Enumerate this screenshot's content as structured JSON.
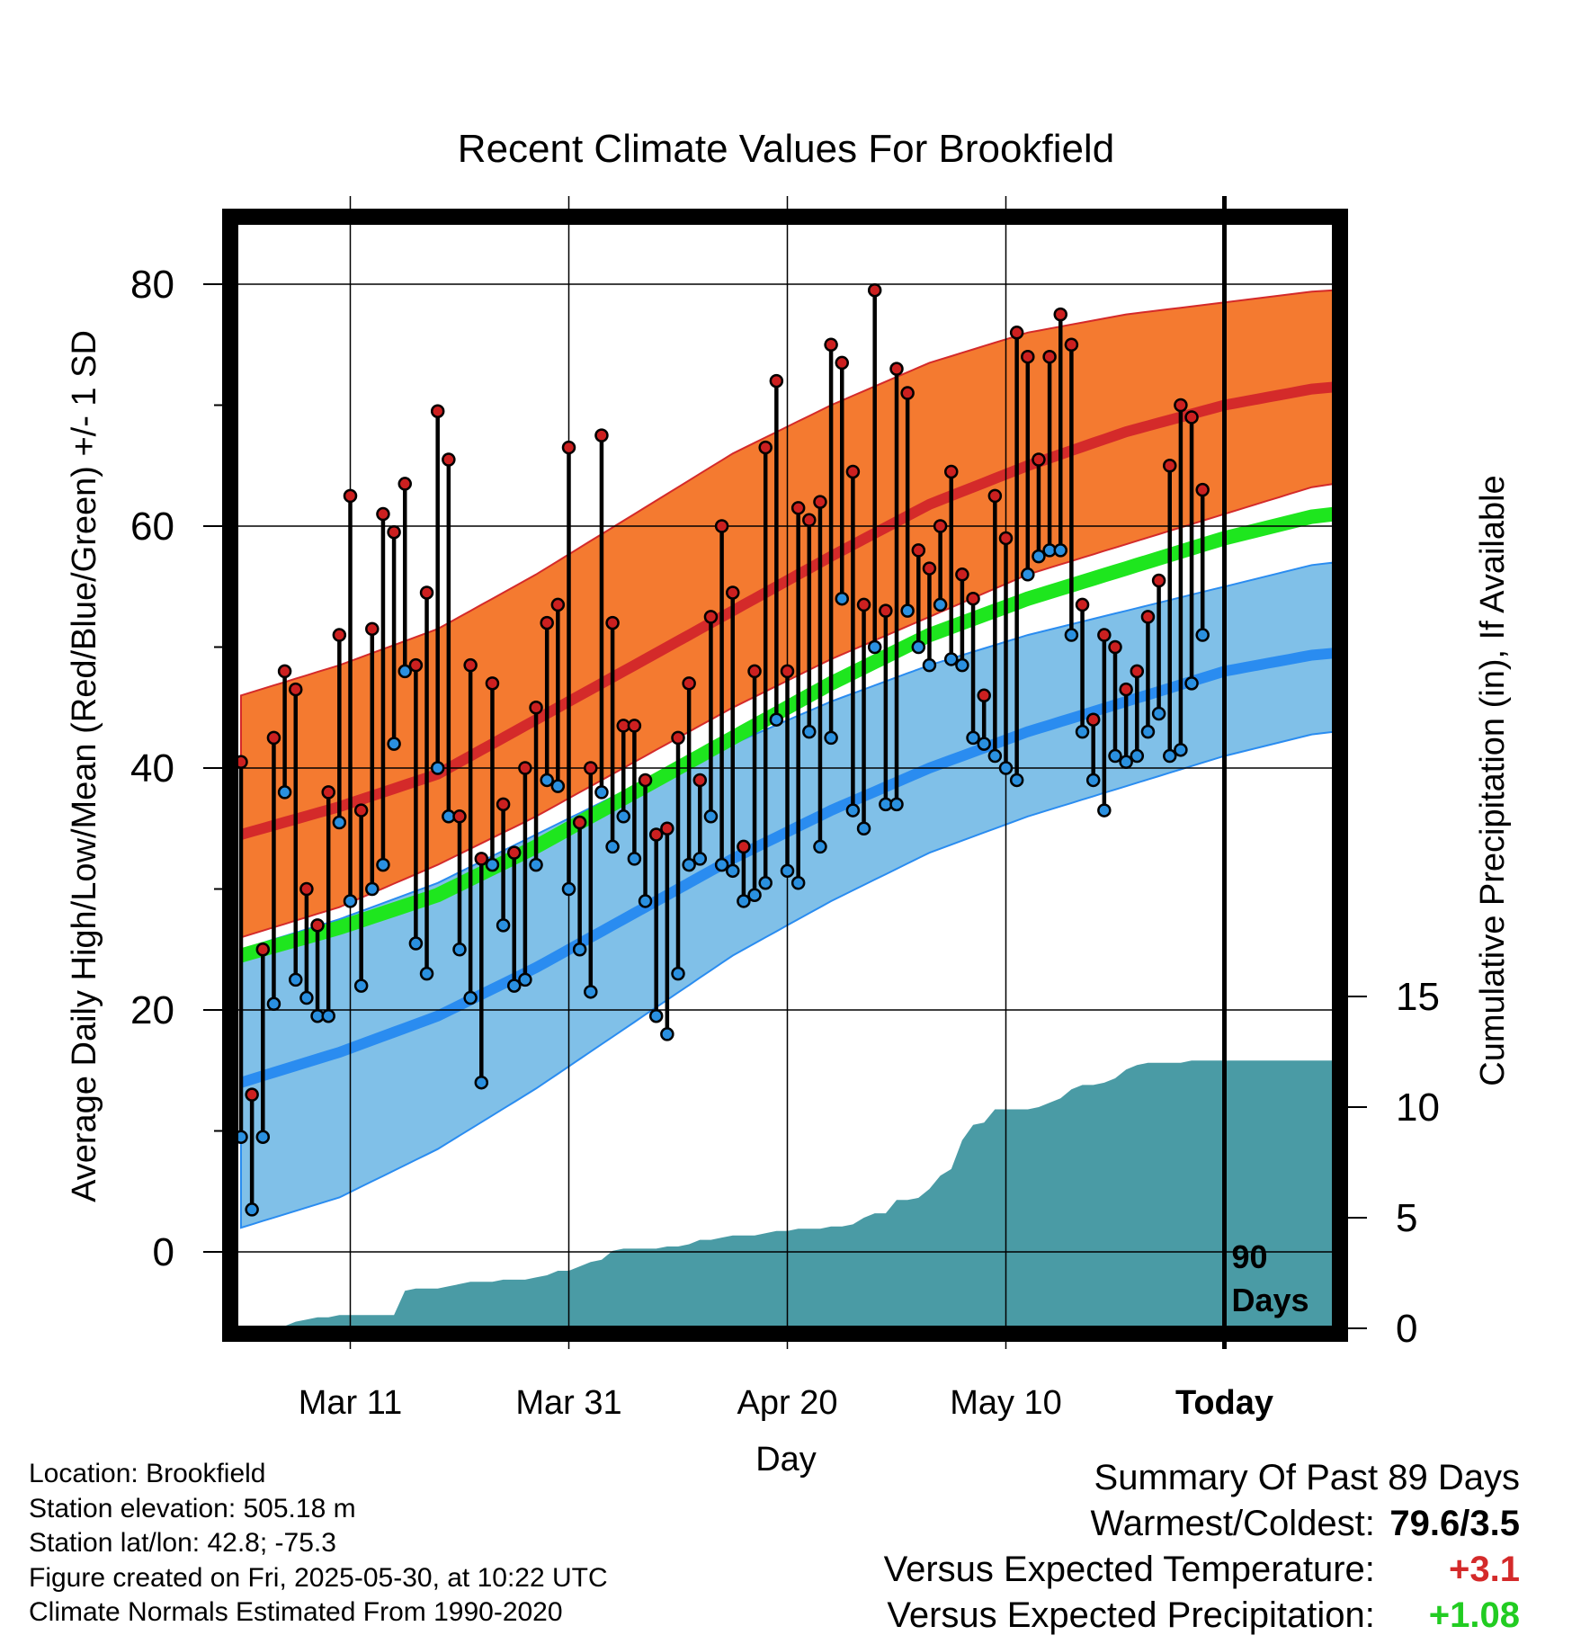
{
  "chart_data": {
    "type": "line",
    "title": "Recent Climate Values For Brookfield",
    "xlabel": "Day",
    "ylabel": "Average Daily High/Low/Mean (Red/Blue/Green) +/- 1 SD",
    "y2label": "Cumulative Precipitation (in), If Available",
    "x_ticks": [
      "Mar 11",
      "Mar 31",
      "Apr 20",
      "May 10",
      "Today"
    ],
    "today_marker": "90 Days",
    "ylim": [
      -6,
      87
    ],
    "y_ticks": [
      0,
      20,
      40,
      60,
      80
    ],
    "y2_ticks": [
      0,
      5,
      10,
      15
    ],
    "grid": true,
    "days": 100,
    "today_index": 90,
    "normal_high_mean": [
      34.5,
      36.8,
      39.5,
      44.0,
      48.5,
      53.0,
      57.5,
      61.8,
      65.0,
      67.8,
      70.0,
      71.5
    ],
    "normal_high_upper": [
      46.0,
      48.5,
      51.5,
      56.0,
      61.0,
      66.0,
      70.0,
      73.5,
      76.0,
      77.5,
      78.5,
      79.5
    ],
    "normal_high_lower": [
      26.0,
      28.5,
      32.0,
      36.0,
      40.5,
      45.0,
      49.0,
      52.5,
      56.0,
      58.5,
      61.0,
      63.5
    ],
    "normal_low_mean": [
      14.0,
      16.5,
      19.5,
      23.5,
      28.0,
      32.5,
      36.5,
      40.0,
      43.0,
      45.5,
      48.0,
      49.5
    ],
    "normal_low_upper": [
      25.0,
      27.5,
      30.5,
      34.5,
      38.5,
      42.0,
      45.5,
      48.5,
      51.0,
      53.0,
      55.0,
      57.0
    ],
    "normal_low_lower": [
      2.0,
      4.5,
      8.5,
      13.5,
      19.0,
      24.5,
      29.0,
      33.0,
      36.0,
      38.5,
      41.0,
      43.0
    ],
    "normal_mean": [
      24.5,
      26.8,
      29.5,
      33.5,
      38.0,
      42.5,
      47.0,
      51.0,
      54.0,
      56.5,
      59.0,
      61.0
    ],
    "highs": [
      40.5,
      13,
      25,
      42.5,
      48,
      46.5,
      30,
      27,
      38,
      51,
      62.5,
      36.5,
      51.5,
      61,
      59.5,
      63.5,
      48.5,
      54.5,
      69.5,
      65.5,
      36,
      48.5,
      32.5,
      47,
      37,
      33,
      40,
      45,
      52,
      53.5,
      66.5,
      35.5,
      40,
      67.5,
      52,
      43.5,
      43.5,
      39,
      34.5,
      35,
      42.5,
      47,
      39,
      52.5,
      60,
      54.5,
      33.5,
      48,
      66.5,
      72,
      48,
      61.5,
      60.5,
      62,
      75,
      73.5,
      64.5,
      53.5,
      79.5,
      53,
      73,
      71,
      58,
      56.5,
      60,
      64.5,
      56,
      54,
      46,
      62.5,
      59,
      76,
      74,
      65.5,
      74,
      77.5,
      75,
      53.5,
      44,
      51,
      50,
      46.5,
      48,
      52.5,
      55.5,
      65,
      70,
      69,
      63
    ],
    "lows": [
      9.5,
      3.5,
      9.5,
      20.5,
      38,
      22.5,
      21,
      19.5,
      19.5,
      35.5,
      29,
      22,
      30,
      32,
      42,
      48,
      25.5,
      23,
      40,
      36,
      25,
      21,
      14,
      32,
      27,
      22,
      22.5,
      32,
      39,
      38.5,
      30,
      25,
      21.5,
      38,
      33.5,
      36,
      32.5,
      29,
      19.5,
      18,
      23,
      32,
      32.5,
      36,
      32,
      31.5,
      29,
      29.5,
      30.5,
      44,
      31.5,
      30.5,
      43,
      33.5,
      42.5,
      54,
      36.5,
      35,
      50,
      37,
      37,
      53,
      50,
      48.5,
      53.5,
      49,
      48.5,
      42.5,
      42,
      41,
      40,
      39,
      56,
      57.5,
      58,
      58,
      51,
      43,
      39,
      36.5,
      41,
      40.5,
      41,
      43,
      44.5,
      41,
      41.5,
      47,
      51
    ],
    "precip_cumulative": [
      0,
      0,
      0,
      0,
      0.1,
      0.3,
      0.4,
      0.5,
      0.5,
      0.6,
      0.6,
      0.6,
      0.6,
      0.6,
      0.6,
      1.7,
      1.8,
      1.8,
      1.8,
      1.9,
      2.0,
      2.1,
      2.1,
      2.1,
      2.2,
      2.2,
      2.2,
      2.3,
      2.4,
      2.6,
      2.6,
      2.8,
      3.0,
      3.1,
      3.5,
      3.6,
      3.6,
      3.6,
      3.6,
      3.7,
      3.7,
      3.8,
      4.0,
      4.0,
      4.1,
      4.2,
      4.2,
      4.2,
      4.3,
      4.4,
      4.4,
      4.5,
      4.5,
      4.5,
      4.6,
      4.6,
      4.7,
      5.0,
      5.2,
      5.2,
      5.8,
      5.8,
      5.9,
      6.3,
      6.9,
      7.2,
      8.5,
      9.2,
      9.3,
      9.9,
      9.9,
      9.9,
      9.9,
      10.0,
      10.2,
      10.4,
      10.8,
      11.0,
      11.0,
      11.1,
      11.3,
      11.7,
      11.9,
      12.0,
      12.0,
      12.0,
      12.0,
      12.1,
      12.1,
      12.1,
      12.1,
      12.1,
      12.1,
      12.1,
      12.1,
      12.1,
      12.1,
      12.1,
      12.1,
      12.1
    ]
  },
  "info": {
    "location": "Location: Brookfield",
    "elevation": "Station elevation: 505.18 m",
    "latlon": "Station lat/lon: 42.8; -75.3",
    "created": "Figure created on Fri, 2025-05-30, at 10:22 UTC",
    "normals": "Climate Normals Estimated From 1990-2020"
  },
  "summary": {
    "heading": "Summary Of Past 89 Days",
    "warmest_label": "Warmest/Coldest:",
    "warmest_value": "79.6/3.5",
    "temp_label": "Versus Expected Temperature:",
    "temp_value": "+3.1",
    "precip_label": "Versus Expected Precipitation:",
    "precip_value": "+1.08"
  },
  "colors": {
    "high_band": "#f47a30",
    "high_mean": "#d42a2a",
    "low_band": "#80c0e8",
    "low_mean": "#2a8cf0",
    "mean_line": "#1ee61e",
    "precip": "#4a9ba5",
    "high_dot": "#cc2020",
    "low_dot": "#2a90e0",
    "temp_value": "#d42a2a",
    "precip_value": "#22cc22"
  }
}
